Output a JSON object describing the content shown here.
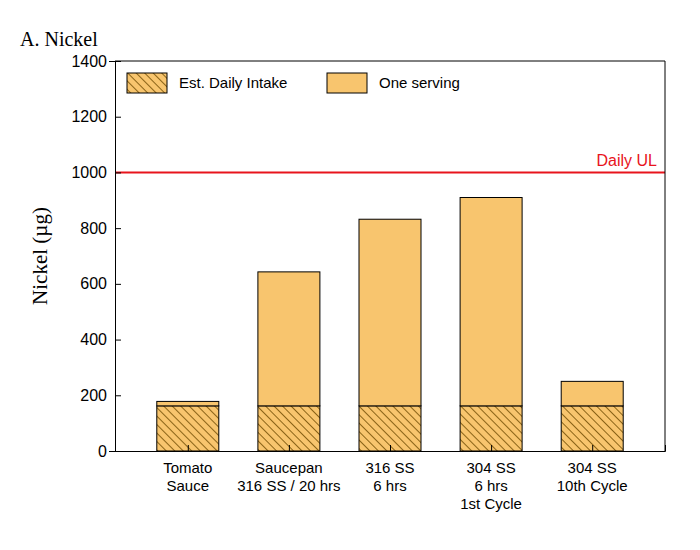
{
  "chart_data": {
    "type": "bar",
    "title": "A. Nickel",
    "stacked": true,
    "y_label": "Nickel (µg)",
    "categories": [
      "Tomato\nSauce",
      "Saucepan\n316 SS / 20 hrs",
      "316 SS\n6 hrs",
      "304 SS\n6 hrs\n1st Cycle",
      "304 SS\n10th Cycle"
    ],
    "series": [
      {
        "name": "Est. Daily Intake",
        "color": "#f8c56e",
        "values": [
          162,
          162,
          162,
          162,
          162
        ]
      },
      {
        "name": "One serving",
        "color": "#f8c56e",
        "values": [
          16,
          481,
          670,
          748,
          88
        ]
      }
    ],
    "ylim": [
      0,
      1400
    ],
    "yticks": [
      0,
      200,
      400,
      600,
      800,
      1000,
      1200,
      1400
    ],
    "legend": "upper left",
    "reference_line": {
      "label": "Daily UL",
      "value": 1000,
      "color": "#e8141c"
    }
  }
}
